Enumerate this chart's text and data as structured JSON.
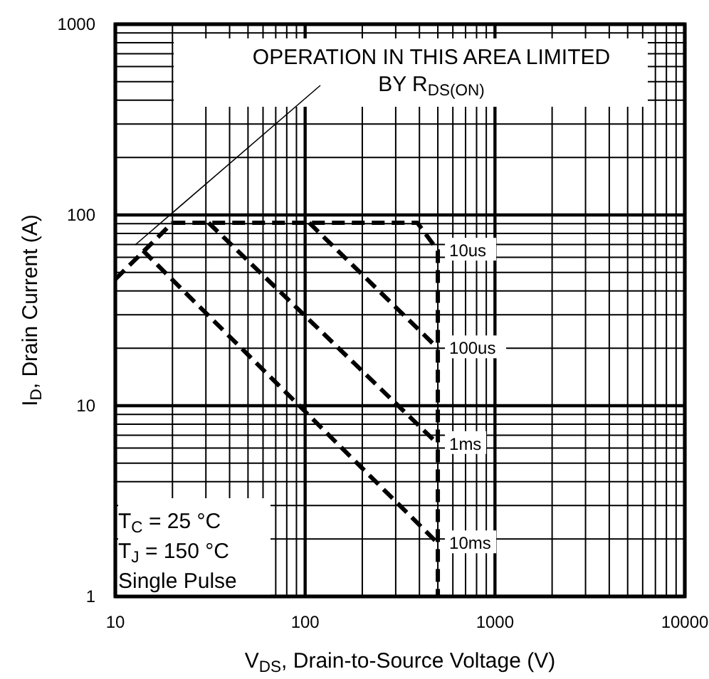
{
  "chart_data": {
    "type": "line",
    "xlabel": "V$_{DS}$, Drain-to-Source Voltage (V)",
    "ylabel": "I$_{D}$, Drain Current (A)",
    "log": "xy",
    "xlim": [
      10,
      10000
    ],
    "ylim": [
      1,
      1000
    ],
    "xticks": [
      10,
      100,
      1000,
      10000
    ],
    "yticks": [
      1,
      10,
      100,
      1000
    ],
    "grid": true,
    "marker": "none",
    "line_style": "dashed",
    "series": [
      {
        "color": "#000000",
        "x": [
          10,
          20
        ],
        "values": [
          46,
          91
        ]
      },
      {
        "name": "10us",
        "color": "#000000",
        "x": [
          20,
          390,
          500,
          500
        ],
        "values": [
          91,
          91,
          65,
          1
        ]
      },
      {
        "name": "100us",
        "color": "#000000",
        "x": [
          105,
          500
        ],
        "values": [
          91,
          20
        ]
      },
      {
        "name": "1ms",
        "color": "#000000",
        "x": [
          31,
          500
        ],
        "values": [
          91,
          6.3
        ]
      },
      {
        "name": "10ms",
        "color": "#000000",
        "x": [
          14,
          500
        ],
        "values": [
          65,
          1.9
        ]
      }
    ],
    "annotations": [
      "OPERATION IN THIS AREA LIMITED BY R$_{DS(ON)}$",
      "T$_{C}$ = 25 °C",
      "T$_{J}$ = 150 °C",
      "Single Pulse"
    ]
  }
}
